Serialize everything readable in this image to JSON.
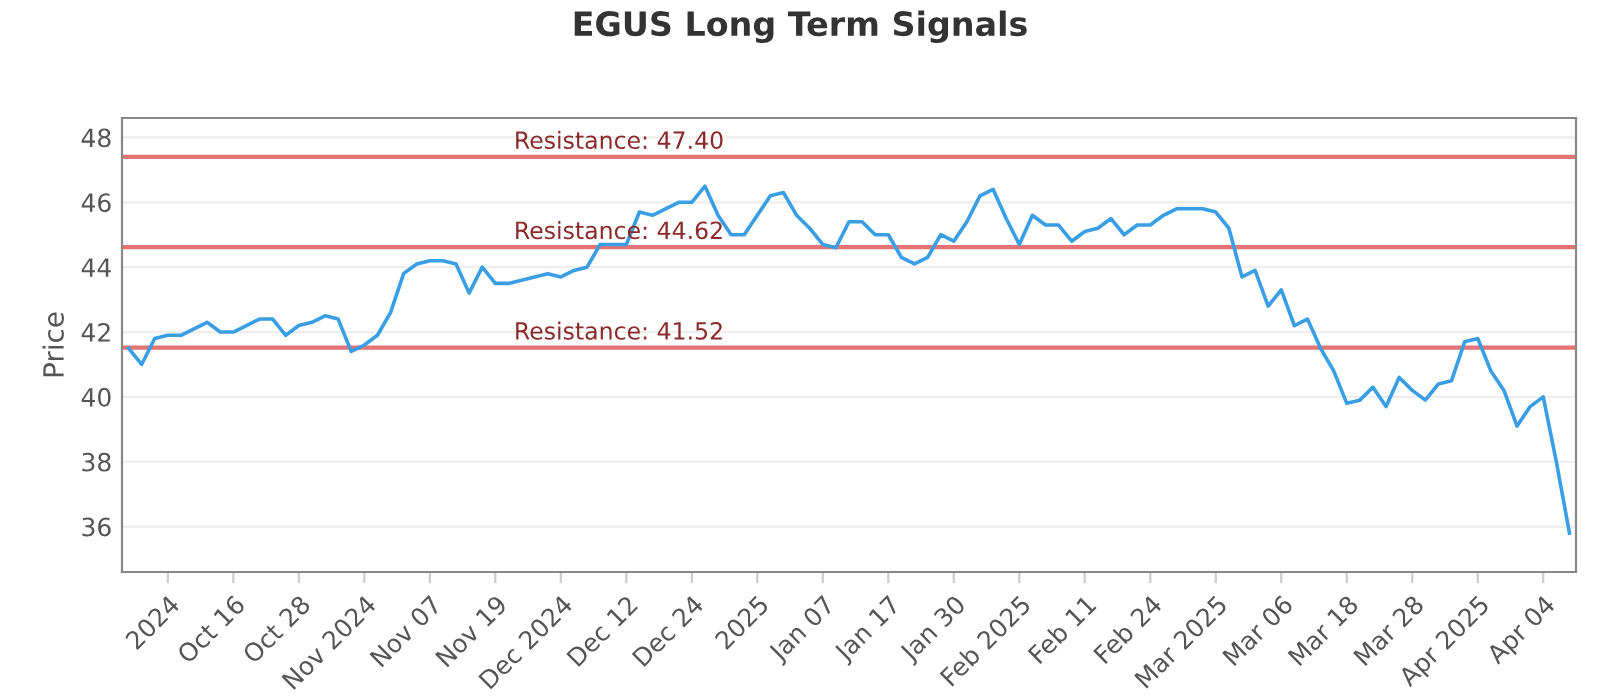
{
  "chart_data": {
    "type": "line",
    "title": "EGUS Long Term Signals",
    "ylabel": "Price",
    "categories": [
      null,
      null,
      null,
      "2024",
      null,
      null,
      null,
      null,
      "Oct 16",
      null,
      null,
      null,
      null,
      "Oct 28",
      null,
      null,
      null,
      null,
      "Nov 2024",
      null,
      null,
      null,
      null,
      "Nov 07",
      null,
      null,
      null,
      null,
      "Nov 19",
      null,
      null,
      null,
      null,
      "Dec 2024",
      null,
      null,
      null,
      null,
      "Dec 12",
      null,
      null,
      null,
      null,
      "Dec 24",
      null,
      null,
      null,
      null,
      "2025",
      null,
      null,
      null,
      null,
      "Jan 07",
      null,
      null,
      null,
      null,
      "Jan 17",
      null,
      null,
      null,
      null,
      "Jan 30",
      null,
      null,
      null,
      null,
      "Feb 2025",
      null,
      null,
      null,
      null,
      "Feb 11",
      null,
      null,
      null,
      null,
      "Feb 24",
      null,
      null,
      null,
      null,
      "Mar 2025",
      null,
      null,
      null,
      null,
      "Mar 06",
      null,
      null,
      null,
      null,
      "Mar 18",
      null,
      null,
      null,
      null,
      "Mar 28",
      null,
      null,
      null,
      null,
      "Apr 2025",
      null,
      null,
      null,
      null,
      "Apr 04",
      null,
      null
    ],
    "series": [
      {
        "color": "#3a9ee4",
        "values": [
          41.5,
          41.0,
          41.8,
          41.9,
          41.9,
          42.1,
          42.3,
          42.0,
          42.0,
          42.2,
          42.4,
          42.4,
          41.9,
          42.2,
          42.3,
          42.5,
          42.4,
          41.4,
          41.6,
          41.9,
          42.6,
          43.8,
          44.1,
          44.2,
          44.2,
          44.1,
          43.2,
          44.0,
          43.5,
          43.5,
          43.6,
          43.7,
          43.8,
          43.7,
          43.9,
          44.0,
          44.7,
          44.7,
          44.7,
          45.7,
          45.6,
          45.8,
          46.0,
          46.0,
          46.5,
          45.6,
          45.0,
          45.0,
          45.6,
          46.2,
          46.3,
          45.6,
          45.2,
          44.7,
          44.6,
          45.4,
          45.4,
          45.0,
          45.0,
          44.3,
          44.1,
          44.3,
          45.0,
          44.8,
          45.4,
          46.2,
          46.4,
          45.5,
          44.7,
          45.6,
          45.3,
          45.3,
          44.8,
          45.1,
          45.2,
          45.5,
          45.0,
          45.3,
          45.3,
          45.6,
          45.8,
          45.8,
          45.8,
          45.7,
          45.2,
          43.7,
          43.9,
          42.8,
          43.3,
          42.2,
          42.4,
          41.5,
          40.8,
          39.8,
          39.9,
          40.3,
          39.7,
          40.6,
          40.2,
          39.9,
          40.4,
          40.5,
          41.7,
          41.8,
          40.8,
          40.2,
          39.1,
          39.7,
          40.0,
          38.0,
          35.8
        ]
      }
    ],
    "ylim": [
      34.6,
      48.6
    ],
    "yticks": [
      36,
      38,
      40,
      42,
      44,
      46,
      48
    ],
    "grid": "y",
    "legend": false,
    "marker": "none",
    "line_style": "solid",
    "ref_lines": [
      {
        "axis": "y",
        "value": 47.4,
        "label": "Resistance: 47.40",
        "color": "#e57373"
      },
      {
        "axis": "y",
        "value": 44.62,
        "label": "Resistance: 44.62",
        "color": "#e57373"
      },
      {
        "axis": "y",
        "value": 41.52,
        "label": "Resistance: 41.52",
        "color": "#e57373"
      }
    ]
  }
}
